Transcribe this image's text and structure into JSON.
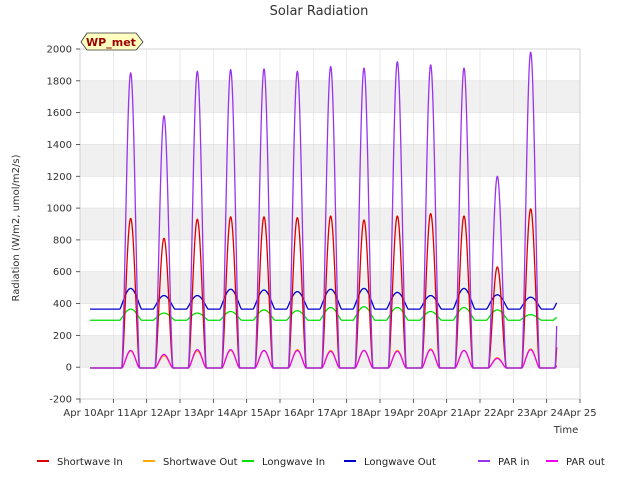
{
  "chart_data": {
    "type": "line",
    "title": "Solar Radiation",
    "xlabel": "Time",
    "ylabel": "Radiation (W/m2, umol/m2/s)",
    "ylim": [
      -200,
      2000
    ],
    "yticks": [
      -200,
      0,
      200,
      400,
      600,
      800,
      1000,
      1200,
      1400,
      1600,
      1800,
      2000
    ],
    "xlim": [
      10,
      25
    ],
    "xticks": [
      {
        "value": 10,
        "label": "Apr 10"
      },
      {
        "value": 11,
        "label": "Apr 11"
      },
      {
        "value": 12,
        "label": "Apr 12"
      },
      {
        "value": 13,
        "label": "Apr 13"
      },
      {
        "value": 14,
        "label": "Apr 14"
      },
      {
        "value": 15,
        "label": "Apr 15"
      },
      {
        "value": 16,
        "label": "Apr 16"
      },
      {
        "value": 17,
        "label": "Apr 17"
      },
      {
        "value": 18,
        "label": "Apr 18"
      },
      {
        "value": 19,
        "label": "Apr 19"
      },
      {
        "value": 20,
        "label": "Apr 20"
      },
      {
        "value": 21,
        "label": "Apr 21"
      },
      {
        "value": 22,
        "label": "Apr 22"
      },
      {
        "value": 23,
        "label": "Apr 23"
      },
      {
        "value": 24,
        "label": "Apr 24"
      },
      {
        "value": 25,
        "label": "Apr 25"
      }
    ],
    "data_range": [
      10.3,
      24.3
    ],
    "daily_peaks": {
      "days": [
        11,
        12,
        13,
        14,
        15,
        16,
        17,
        18,
        19,
        20,
        21,
        22,
        23,
        24
      ],
      "Shortwave In": [
        935,
        810,
        930,
        945,
        945,
        940,
        950,
        925,
        950,
        965,
        950,
        630,
        995,
        960
      ],
      "Shortwave Out": [
        100,
        70,
        100,
        105,
        105,
        110,
        105,
        105,
        105,
        115,
        105,
        60,
        115,
        115
      ],
      "Longwave In": [
        365,
        340,
        340,
        350,
        360,
        355,
        375,
        380,
        375,
        350,
        375,
        360,
        330,
        340
      ],
      "Longwave Out": [
        495,
        450,
        450,
        490,
        485,
        475,
        490,
        495,
        470,
        450,
        495,
        455,
        440,
        460
      ],
      "PAR in": [
        1850,
        1580,
        1860,
        1870,
        1875,
        1860,
        1890,
        1880,
        1920,
        1900,
        1880,
        1200,
        1980,
        1940
      ],
      "PAR out": [
        105,
        80,
        110,
        110,
        105,
        105,
        100,
        105,
        100,
        110,
        105,
        55,
        110,
        105
      ]
    },
    "night_baseline": {
      "Shortwave In": -5,
      "Shortwave Out": -5,
      "Longwave In": 295,
      "Longwave Out": 365,
      "PAR in": -5,
      "PAR out": -5
    },
    "series": [
      {
        "name": "Shortwave In",
        "color": "#dd0000"
      },
      {
        "name": "Shortwave Out",
        "color": "#ffaa00"
      },
      {
        "name": "Longwave In",
        "color": "#00dd00"
      },
      {
        "name": "Longwave Out",
        "color": "#0000cc"
      },
      {
        "name": "PAR in",
        "color": "#9933ee"
      },
      {
        "name": "PAR out",
        "color": "#ee00ee"
      }
    ],
    "legend_position": "bottom",
    "grid": true,
    "annotation": "WP_met"
  }
}
